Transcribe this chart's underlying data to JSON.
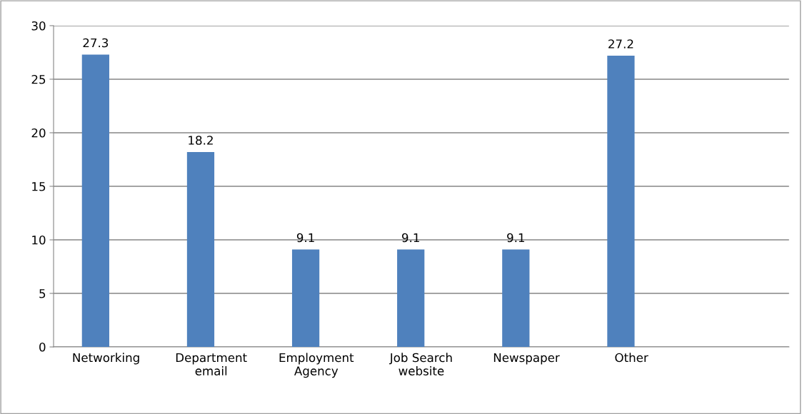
{
  "chart_data": {
    "type": "bar",
    "categories": [
      "Networking",
      "Department\nemail",
      "Employment\nAgency",
      "Job Search\nwebsite",
      "Newspaper",
      "Other",
      null
    ],
    "values": [
      27.3,
      18.2,
      9.1,
      9.1,
      9.1,
      27.2,
      null
    ],
    "color": "#4f81bd",
    "ylim": [
      0,
      30
    ],
    "yticks": [
      0,
      5,
      10,
      15,
      20,
      25,
      30
    ],
    "grid": "y",
    "data_labels": true
  }
}
